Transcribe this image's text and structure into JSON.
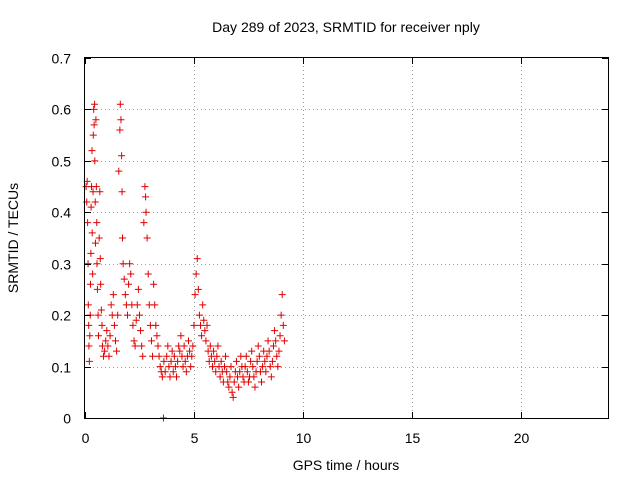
{
  "chart_data": {
    "type": "scatter",
    "title": "Day 289 of 2023, SRMTID for receiver nply",
    "xlabel": "GPS time / hours",
    "ylabel": "SRMTID / TECUs",
    "xlim": [
      0,
      24
    ],
    "ylim": [
      0,
      0.7
    ],
    "xticks": [
      0,
      5,
      10,
      15,
      20
    ],
    "yticks": [
      0,
      0.1,
      0.2,
      0.3,
      0.4,
      0.5,
      0.6,
      0.7
    ],
    "xtick_labels": [
      "0",
      "5",
      "10",
      "15",
      "20"
    ],
    "ytick_labels": [
      "0",
      "0.1",
      "0.2",
      "0.3",
      "0.4",
      "0.5",
      "0.6",
      "0.7"
    ],
    "grid": true,
    "marker": "+",
    "color": "#e00000",
    "series": [
      {
        "name": "SRMTID",
        "points": [
          [
            0.05,
            0.45
          ],
          [
            0.08,
            0.42
          ],
          [
            0.1,
            0.46
          ],
          [
            0.12,
            0.38
          ],
          [
            0.14,
            0.3
          ],
          [
            0.15,
            0.22
          ],
          [
            0.17,
            0.18
          ],
          [
            0.18,
            0.14
          ],
          [
            0.2,
            0.11
          ],
          [
            0.22,
            0.16
          ],
          [
            0.24,
            0.2
          ],
          [
            0.25,
            0.26
          ],
          [
            0.27,
            0.32
          ],
          [
            0.28,
            0.41
          ],
          [
            0.3,
            0.45
          ],
          [
            0.32,
            0.52
          ],
          [
            0.33,
            0.36
          ],
          [
            0.35,
            0.28
          ],
          [
            0.37,
            0.44
          ],
          [
            0.38,
            0.55
          ],
          [
            0.4,
            0.6
          ],
          [
            0.42,
            0.57
          ],
          [
            0.44,
            0.61
          ],
          [
            0.45,
            0.5
          ],
          [
            0.47,
            0.42
          ],
          [
            0.48,
            0.34
          ],
          [
            0.5,
            0.58
          ],
          [
            0.52,
            0.45
          ],
          [
            0.54,
            0.38
          ],
          [
            0.55,
            0.3
          ],
          [
            0.57,
            0.25
          ],
          [
            0.6,
            0.2
          ],
          [
            0.62,
            0.16
          ],
          [
            0.65,
            0.35
          ],
          [
            0.68,
            0.44
          ],
          [
            0.7,
            0.31
          ],
          [
            0.72,
            0.26
          ],
          [
            0.75,
            0.21
          ],
          [
            0.78,
            0.18
          ],
          [
            0.8,
            0.14
          ],
          [
            0.85,
            0.12
          ],
          [
            0.9,
            0.13
          ],
          [
            0.95,
            0.15
          ],
          [
            1.0,
            0.17
          ],
          [
            1.05,
            0.14
          ],
          [
            1.1,
            0.12
          ],
          [
            1.15,
            0.16
          ],
          [
            1.2,
            0.22
          ],
          [
            1.25,
            0.2
          ],
          [
            1.3,
            0.24
          ],
          [
            1.35,
            0.18
          ],
          [
            1.4,
            0.15
          ],
          [
            1.45,
            0.13
          ],
          [
            1.5,
            0.2
          ],
          [
            1.55,
            0.48
          ],
          [
            1.6,
            0.56
          ],
          [
            1.62,
            0.61
          ],
          [
            1.65,
            0.58
          ],
          [
            1.68,
            0.51
          ],
          [
            1.7,
            0.44
          ],
          [
            1.72,
            0.35
          ],
          [
            1.75,
            0.3
          ],
          [
            1.8,
            0.27
          ],
          [
            1.85,
            0.24
          ],
          [
            1.9,
            0.22
          ],
          [
            1.95,
            0.2
          ],
          [
            2.0,
            0.26
          ],
          [
            2.05,
            0.3
          ],
          [
            2.1,
            0.28
          ],
          [
            2.15,
            0.22
          ],
          [
            2.2,
            0.18
          ],
          [
            2.25,
            0.15
          ],
          [
            2.3,
            0.14
          ],
          [
            2.35,
            0.19
          ],
          [
            2.4,
            0.22
          ],
          [
            2.45,
            0.25
          ],
          [
            2.5,
            0.2
          ],
          [
            2.55,
            0.17
          ],
          [
            2.6,
            0.14
          ],
          [
            2.65,
            0.12
          ],
          [
            2.7,
            0.38
          ],
          [
            2.75,
            0.45
          ],
          [
            2.78,
            0.43
          ],
          [
            2.8,
            0.4
          ],
          [
            2.85,
            0.35
          ],
          [
            2.9,
            0.28
          ],
          [
            2.95,
            0.22
          ],
          [
            3.0,
            0.18
          ],
          [
            3.05,
            0.15
          ],
          [
            3.1,
            0.12
          ],
          [
            3.15,
            0.26
          ],
          [
            3.2,
            0.22
          ],
          [
            3.25,
            0.18
          ],
          [
            3.3,
            0.16
          ],
          [
            3.35,
            0.14
          ],
          [
            3.4,
            0.12
          ],
          [
            3.45,
            0.1
          ],
          [
            3.5,
            0.09
          ],
          [
            3.55,
            0.08
          ],
          [
            3.6,
            0.0
          ],
          [
            3.62,
            0.11
          ],
          [
            3.68,
            0.09
          ],
          [
            3.75,
            0.12
          ],
          [
            3.8,
            0.14
          ],
          [
            3.85,
            0.1
          ],
          [
            3.9,
            0.08
          ],
          [
            3.95,
            0.11
          ],
          [
            4.0,
            0.13
          ],
          [
            4.05,
            0.09
          ],
          [
            4.1,
            0.12
          ],
          [
            4.15,
            0.1
          ],
          [
            4.2,
            0.08
          ],
          [
            4.25,
            0.11
          ],
          [
            4.3,
            0.14
          ],
          [
            4.35,
            0.13
          ],
          [
            4.4,
            0.16
          ],
          [
            4.45,
            0.12
          ],
          [
            4.5,
            0.1
          ],
          [
            4.55,
            0.14
          ],
          [
            4.6,
            0.11
          ],
          [
            4.65,
            0.09
          ],
          [
            4.7,
            0.12
          ],
          [
            4.75,
            0.15
          ],
          [
            4.8,
            0.13
          ],
          [
            4.85,
            0.1
          ],
          [
            4.9,
            0.12
          ],
          [
            4.95,
            0.14
          ],
          [
            5.0,
            0.18
          ],
          [
            5.05,
            0.24
          ],
          [
            5.1,
            0.28
          ],
          [
            5.15,
            0.31
          ],
          [
            5.2,
            0.25
          ],
          [
            5.25,
            0.2
          ],
          [
            5.3,
            0.18
          ],
          [
            5.35,
            0.16
          ],
          [
            5.4,
            0.22
          ],
          [
            5.45,
            0.19
          ],
          [
            5.5,
            0.17
          ],
          [
            5.55,
            0.15
          ],
          [
            5.6,
            0.18
          ],
          [
            5.65,
            0.13
          ],
          [
            5.7,
            0.11
          ],
          [
            5.75,
            0.14
          ],
          [
            5.8,
            0.12
          ],
          [
            5.85,
            0.1
          ],
          [
            5.9,
            0.13
          ],
          [
            5.95,
            0.11
          ],
          [
            6.0,
            0.09
          ],
          [
            6.05,
            0.12
          ],
          [
            6.1,
            0.14
          ],
          [
            6.15,
            0.1
          ],
          [
            6.2,
            0.08
          ],
          [
            6.25,
            0.11
          ],
          [
            6.3,
            0.09
          ],
          [
            6.35,
            0.07
          ],
          [
            6.4,
            0.1
          ],
          [
            6.45,
            0.12
          ],
          [
            6.5,
            0.09
          ],
          [
            6.55,
            0.07
          ],
          [
            6.6,
            0.06
          ],
          [
            6.65,
            0.08
          ],
          [
            6.7,
            0.1
          ],
          [
            6.75,
            0.05
          ],
          [
            6.8,
            0.04
          ],
          [
            6.85,
            0.07
          ],
          [
            6.9,
            0.09
          ],
          [
            6.95,
            0.11
          ],
          [
            7.0,
            0.08
          ],
          [
            7.05,
            0.06
          ],
          [
            7.1,
            0.09
          ],
          [
            7.15,
            0.12
          ],
          [
            7.2,
            0.1
          ],
          [
            7.25,
            0.08
          ],
          [
            7.3,
            0.07
          ],
          [
            7.35,
            0.1
          ],
          [
            7.4,
            0.12
          ],
          [
            7.45,
            0.09
          ],
          [
            7.5,
            0.07
          ],
          [
            7.55,
            0.08
          ],
          [
            7.6,
            0.11
          ],
          [
            7.65,
            0.13
          ],
          [
            7.7,
            0.1
          ],
          [
            7.75,
            0.08
          ],
          [
            7.8,
            0.06
          ],
          [
            7.85,
            0.09
          ],
          [
            7.9,
            0.11
          ],
          [
            7.95,
            0.14
          ],
          [
            8.0,
            0.12
          ],
          [
            8.05,
            0.09
          ],
          [
            8.1,
            0.07
          ],
          [
            8.15,
            0.1
          ],
          [
            8.2,
            0.13
          ],
          [
            8.25,
            0.11
          ],
          [
            8.3,
            0.09
          ],
          [
            8.35,
            0.12
          ],
          [
            8.4,
            0.15
          ],
          [
            8.45,
            0.13
          ],
          [
            8.5,
            0.1
          ],
          [
            8.55,
            0.08
          ],
          [
            8.6,
            0.11
          ],
          [
            8.65,
            0.14
          ],
          [
            8.7,
            0.17
          ],
          [
            8.75,
            0.15
          ],
          [
            8.8,
            0.12
          ],
          [
            8.85,
            0.1
          ],
          [
            8.9,
            0.13
          ],
          [
            8.95,
            0.16
          ],
          [
            9.0,
            0.2
          ],
          [
            9.05,
            0.24
          ],
          [
            9.1,
            0.18
          ],
          [
            9.15,
            0.15
          ]
        ]
      }
    ]
  }
}
